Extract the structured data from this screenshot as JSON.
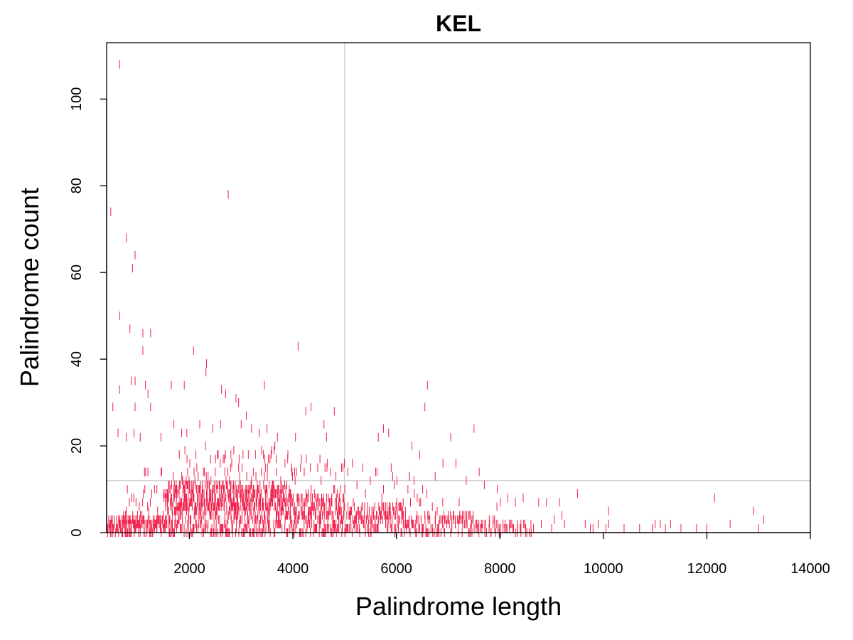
{
  "chart_data": {
    "type": "scatter",
    "title": "KEL",
    "xlabel": "Palindrome length",
    "ylabel": "Palindrome count",
    "xlim": [
      400,
      14000
    ],
    "ylim": [
      0,
      113
    ],
    "x_ticks": [
      {
        "value": 2000,
        "label": "2000"
      },
      {
        "value": 4000,
        "label": "4000"
      },
      {
        "value": 6000,
        "label": "6000"
      },
      {
        "value": 8000,
        "label": "8000"
      },
      {
        "value": 10000,
        "label": "10000"
      },
      {
        "value": 12000,
        "label": "12000"
      },
      {
        "value": 14000,
        "label": "14000"
      }
    ],
    "y_ticks": [
      {
        "value": 0,
        "label": "0"
      },
      {
        "value": 20,
        "label": "20"
      },
      {
        "value": 40,
        "label": "40"
      },
      {
        "value": 60,
        "label": "60"
      },
      {
        "value": 80,
        "label": "80"
      },
      {
        "value": 100,
        "label": "100"
      }
    ],
    "reference_lines": {
      "vertical_x": 5000,
      "horizontal_y": 12
    },
    "marker": "vertical-tick",
    "point_color": "#f0204a",
    "reference_line_color": "#d3d3d3",
    "grid": false,
    "points": [
      {
        "x": 650,
        "y": 108
      },
      {
        "x": 2750,
        "y": 78
      },
      {
        "x": 480,
        "y": 74
      },
      {
        "x": 780,
        "y": 68
      },
      {
        "x": 950,
        "y": 64
      },
      {
        "x": 900,
        "y": 61
      },
      {
        "x": 650,
        "y": 50
      },
      {
        "x": 850,
        "y": 47
      },
      {
        "x": 1100,
        "y": 46
      },
      {
        "x": 1250,
        "y": 46
      },
      {
        "x": 4100,
        "y": 43
      },
      {
        "x": 1100,
        "y": 42
      },
      {
        "x": 2080,
        "y": 42
      },
      {
        "x": 2330,
        "y": 39
      },
      {
        "x": 2320,
        "y": 37
      },
      {
        "x": 880,
        "y": 35
      },
      {
        "x": 950,
        "y": 35
      },
      {
        "x": 1150,
        "y": 34
      },
      {
        "x": 1650,
        "y": 34
      },
      {
        "x": 1900,
        "y": 34
      },
      {
        "x": 3450,
        "y": 34
      },
      {
        "x": 6600,
        "y": 34
      },
      {
        "x": 650,
        "y": 33
      },
      {
        "x": 1200,
        "y": 32
      },
      {
        "x": 2620,
        "y": 33
      },
      {
        "x": 2700,
        "y": 32
      },
      {
        "x": 2900,
        "y": 31
      },
      {
        "x": 2950,
        "y": 30
      },
      {
        "x": 6550,
        "y": 29
      },
      {
        "x": 520,
        "y": 29
      },
      {
        "x": 950,
        "y": 29
      },
      {
        "x": 1250,
        "y": 29
      },
      {
        "x": 4350,
        "y": 29
      },
      {
        "x": 4250,
        "y": 28
      },
      {
        "x": 4800,
        "y": 28
      },
      {
        "x": 3100,
        "y": 27
      },
      {
        "x": 2200,
        "y": 25
      },
      {
        "x": 1700,
        "y": 25
      },
      {
        "x": 2450,
        "y": 24
      },
      {
        "x": 2600,
        "y": 25
      },
      {
        "x": 3000,
        "y": 25
      },
      {
        "x": 3200,
        "y": 24
      },
      {
        "x": 3350,
        "y": 23
      },
      {
        "x": 3500,
        "y": 24
      },
      {
        "x": 7500,
        "y": 24
      },
      {
        "x": 5750,
        "y": 24
      },
      {
        "x": 5850,
        "y": 23
      },
      {
        "x": 5650,
        "y": 22
      },
      {
        "x": 7050,
        "y": 22
      },
      {
        "x": 620,
        "y": 23
      },
      {
        "x": 780,
        "y": 22
      },
      {
        "x": 930,
        "y": 23
      },
      {
        "x": 1050,
        "y": 22
      },
      {
        "x": 1450,
        "y": 22
      },
      {
        "x": 1850,
        "y": 23
      },
      {
        "x": 1950,
        "y": 23
      },
      {
        "x": 4600,
        "y": 25
      },
      {
        "x": 4650,
        "y": 22
      },
      {
        "x": 3700,
        "y": 22
      },
      {
        "x": 4050,
        "y": 22
      },
      {
        "x": 6300,
        "y": 20
      },
      {
        "x": 6450,
        "y": 18
      },
      {
        "x": 6900,
        "y": 16
      },
      {
        "x": 7150,
        "y": 16
      },
      {
        "x": 7600,
        "y": 14
      },
      {
        "x": 5150,
        "y": 16
      },
      {
        "x": 5350,
        "y": 15
      },
      {
        "x": 5600,
        "y": 14
      },
      {
        "x": 5900,
        "y": 15
      },
      {
        "x": 6250,
        "y": 13
      },
      {
        "x": 6750,
        "y": 13
      },
      {
        "x": 7350,
        "y": 12
      },
      {
        "x": 7700,
        "y": 11
      },
      {
        "x": 7950,
        "y": 10
      },
      {
        "x": 8150,
        "y": 8
      },
      {
        "x": 8300,
        "y": 7
      },
      {
        "x": 8450,
        "y": 8
      },
      {
        "x": 8750,
        "y": 7
      },
      {
        "x": 8900,
        "y": 7
      },
      {
        "x": 9150,
        "y": 7
      },
      {
        "x": 9500,
        "y": 9
      },
      {
        "x": 9200,
        "y": 4
      },
      {
        "x": 9050,
        "y": 3
      },
      {
        "x": 8600,
        "y": 2
      },
      {
        "x": 8800,
        "y": 2
      },
      {
        "x": 9000,
        "y": 1
      },
      {
        "x": 9250,
        "y": 2
      },
      {
        "x": 9650,
        "y": 2
      },
      {
        "x": 9800,
        "y": 1
      },
      {
        "x": 9900,
        "y": 2
      },
      {
        "x": 10050,
        "y": 1
      },
      {
        "x": 10100,
        "y": 2
      },
      {
        "x": 10100,
        "y": 5
      },
      {
        "x": 10400,
        "y": 1
      },
      {
        "x": 10700,
        "y": 1
      },
      {
        "x": 10950,
        "y": 1
      },
      {
        "x": 11000,
        "y": 2
      },
      {
        "x": 11100,
        "y": 2
      },
      {
        "x": 11200,
        "y": 1
      },
      {
        "x": 11300,
        "y": 2
      },
      {
        "x": 11500,
        "y": 1
      },
      {
        "x": 11800,
        "y": 1
      },
      {
        "x": 12000,
        "y": 1
      },
      {
        "x": 12150,
        "y": 8
      },
      {
        "x": 12450,
        "y": 2
      },
      {
        "x": 12900,
        "y": 5
      },
      {
        "x": 13000,
        "y": 1
      },
      {
        "x": 13100,
        "y": 3
      },
      {
        "x": 9750,
        "y": 1
      },
      {
        "x": 8400,
        "y": 1
      },
      {
        "x": 8500,
        "y": 1
      },
      {
        "x": 8650,
        "y": 1
      },
      {
        "x": 8250,
        "y": 1
      },
      {
        "x": 7800,
        "y": 2
      },
      {
        "x": 7900,
        "y": 1
      },
      {
        "x": 8100,
        "y": 2
      }
    ],
    "dense_bands": [
      {
        "x_from": 420,
        "x_to": 1500,
        "step": 12,
        "y_max": 3
      },
      {
        "x_from": 1500,
        "x_to": 3800,
        "step": 6,
        "y_max": 11
      },
      {
        "x_from": 3800,
        "x_to": 5000,
        "step": 9,
        "y_max": 8
      },
      {
        "x_from": 5000,
        "x_to": 6200,
        "step": 13,
        "y_max": 6
      },
      {
        "x_from": 6200,
        "x_to": 7500,
        "step": 20,
        "y_max": 4
      },
      {
        "x_from": 7500,
        "x_to": 8600,
        "step": 30,
        "y_max": 2
      }
    ],
    "scattered_bands": [
      {
        "x_from": 700,
        "x_to": 1800,
        "step": 16,
        "y_min": 2,
        "y_max": 15
      },
      {
        "x_from": 1800,
        "x_to": 4000,
        "step": 11,
        "y_min": 6,
        "y_max": 20
      },
      {
        "x_from": 4000,
        "x_to": 5000,
        "step": 17,
        "y_min": 4,
        "y_max": 18
      },
      {
        "x_from": 5000,
        "x_to": 6500,
        "step": 28,
        "y_min": 3,
        "y_max": 14
      },
      {
        "x_from": 6500,
        "x_to": 8000,
        "step": 55,
        "y_min": 2,
        "y_max": 10
      }
    ]
  }
}
